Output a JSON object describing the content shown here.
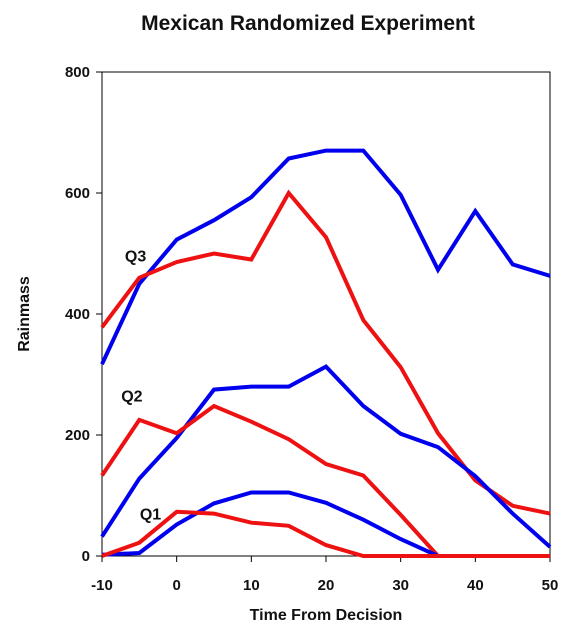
{
  "chart_data": {
    "type": "line",
    "title": "Mexican Randomized Experiment",
    "xlabel": "Time From Decision",
    "ylabel": "Rainmass",
    "xlim": [
      -10,
      50
    ],
    "ylim": [
      0,
      800
    ],
    "x_ticks": [
      "-10",
      "0",
      "10",
      "20",
      "30",
      "40",
      "50"
    ],
    "y_ticks": [
      "0",
      "200",
      "400",
      "600",
      "800"
    ],
    "grid": false,
    "legend": "none",
    "colors": {
      "seeded": "#0000ee",
      "unseeded": "#ee1111"
    },
    "annotations": [
      {
        "text": "Q3",
        "x": -5.5,
        "y": 497
      },
      {
        "text": "Q2",
        "x": -6.0,
        "y": 265
      },
      {
        "text": "Q1",
        "x": -3.5,
        "y": 70
      }
    ],
    "series": [
      {
        "group": "Q3",
        "color_key": "seeded",
        "x": [
          -10,
          -5,
          0,
          5,
          10,
          15,
          20,
          25,
          30,
          35,
          40,
          45,
          50
        ],
        "y": [
          317,
          450,
          523,
          555,
          593,
          657,
          670,
          670,
          597,
          473,
          570,
          482,
          463
        ]
      },
      {
        "group": "Q3",
        "color_key": "unseeded",
        "x": [
          -10,
          -5,
          0,
          5,
          10,
          15,
          20,
          25,
          30,
          35,
          40,
          45,
          50
        ],
        "y": [
          378,
          460,
          486,
          500,
          490,
          600,
          527,
          390,
          312,
          203,
          125,
          83,
          70
        ]
      },
      {
        "group": "Q2",
        "color_key": "seeded",
        "x": [
          -10,
          -5,
          0,
          5,
          10,
          15,
          20,
          25,
          30,
          35,
          40,
          45,
          50
        ],
        "y": [
          32,
          128,
          195,
          275,
          280,
          280,
          313,
          248,
          202,
          180,
          132,
          70,
          15
        ]
      },
      {
        "group": "Q2",
        "color_key": "unseeded",
        "x": [
          -10,
          -5,
          0,
          5,
          10,
          15,
          20,
          25,
          30,
          35,
          40,
          45,
          50
        ],
        "y": [
          133,
          225,
          203,
          248,
          222,
          193,
          152,
          133,
          68,
          0,
          0,
          0,
          0
        ]
      },
      {
        "group": "Q1",
        "color_key": "seeded",
        "x": [
          -10,
          -5,
          0,
          5,
          10,
          15,
          20,
          25,
          30,
          35,
          40,
          45,
          50
        ],
        "y": [
          2,
          5,
          52,
          87,
          105,
          105,
          88,
          60,
          28,
          0,
          0,
          0,
          0
        ]
      },
      {
        "group": "Q1",
        "color_key": "unseeded",
        "x": [
          -10,
          -5,
          0,
          5,
          10,
          15,
          20,
          25,
          30,
          35,
          40,
          45,
          50
        ],
        "y": [
          0,
          22,
          73,
          70,
          55,
          50,
          18,
          0,
          0,
          0,
          0,
          0,
          0
        ]
      }
    ]
  }
}
